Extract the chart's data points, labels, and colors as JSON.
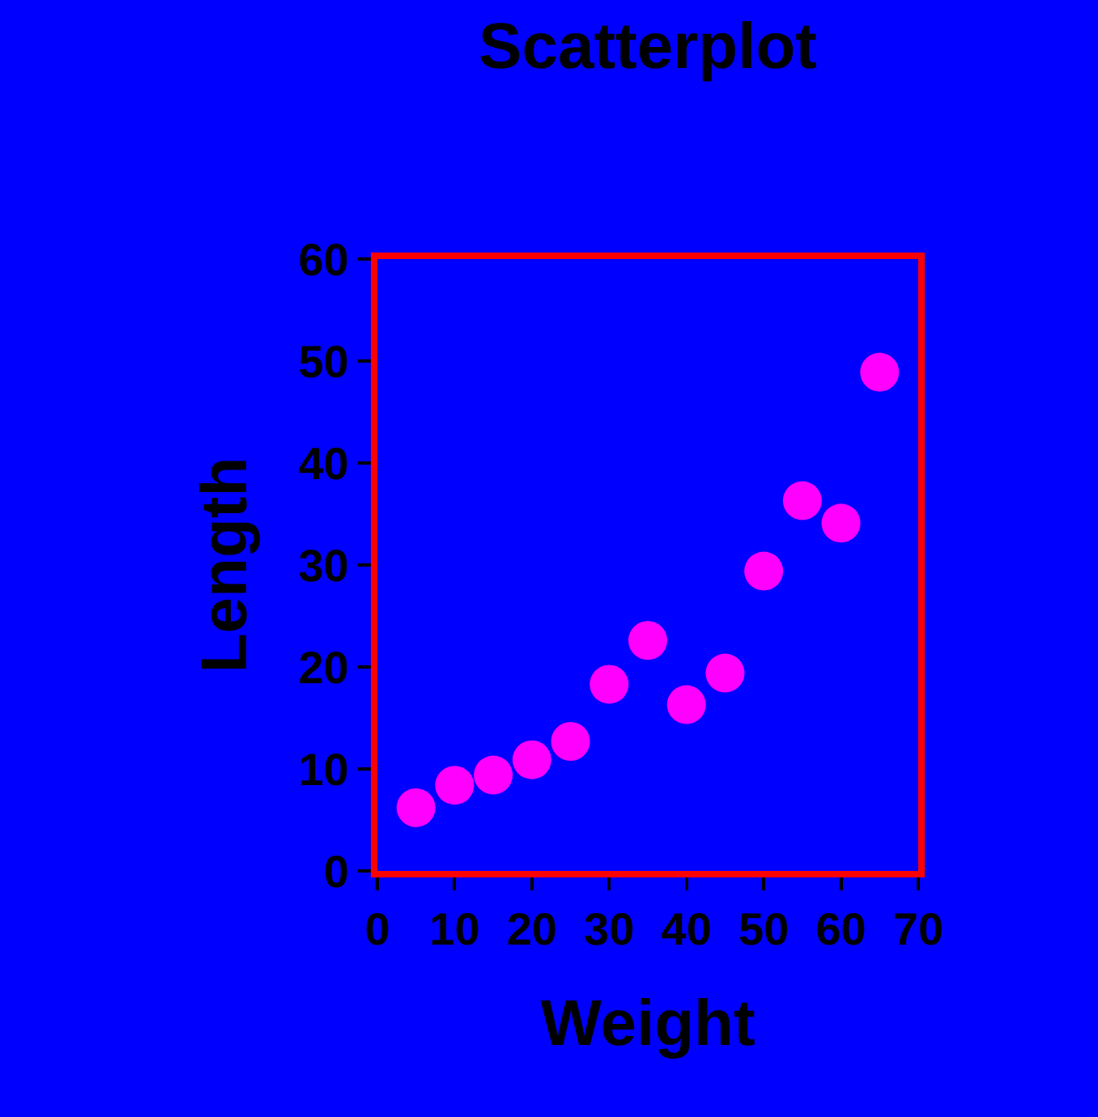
{
  "chart_data": {
    "type": "scatter",
    "title": "Scatterplot",
    "xlabel": "Weight",
    "ylabel": "Length",
    "x": [
      5,
      10,
      15,
      20,
      25,
      30,
      35,
      40,
      45,
      50,
      55,
      60,
      65
    ],
    "series": [
      {
        "color": "#ff00ff",
        "values": [
          6.2,
          8.4,
          9.4,
          10.9,
          12.7,
          18.3,
          22.6,
          16.3,
          19.4,
          29.4,
          36.3,
          34.1,
          48.9
        ]
      }
    ],
    "xlim": [
      0,
      70
    ],
    "ylim": [
      0,
      60
    ],
    "xticks": [
      0,
      10,
      20,
      30,
      40,
      50,
      60,
      70
    ],
    "yticks": [
      0,
      10,
      20,
      30,
      40,
      50,
      60
    ],
    "marker": "circle",
    "grid": false
  }
}
